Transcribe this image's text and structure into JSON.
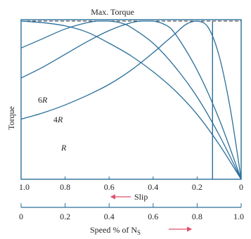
{
  "chart_data": {
    "type": "line",
    "ylabel": "Torque",
    "top_label": "Max. Torque",
    "max_torque": 1.0,
    "slip_axis": {
      "direction_label": "Slip",
      "ticks": [
        "1.0",
        "0.8",
        "0.6",
        "0.4",
        "0.2",
        "0"
      ],
      "range": [
        1.0,
        0
      ]
    },
    "speed_axis": {
      "label_main": "Speed % of N",
      "label_sub": "S",
      "ticks": [
        "0",
        "0.2",
        "0.4",
        "0.6",
        "0.8",
        "1.0"
      ],
      "range": [
        0,
        1.0
      ]
    },
    "vertical_marker_slip": 0.13,
    "series": [
      {
        "name": "R",
        "slip_at_max_torque": 0.2,
        "x": [
          1.0,
          0.9,
          0.8,
          0.7,
          0.6,
          0.5,
          0.4,
          0.35,
          0.3,
          0.25,
          0.2,
          0.15,
          0.1,
          0.05,
          0
        ],
        "y": [
          0.38,
          0.42,
          0.47,
          0.53,
          0.6,
          0.69,
          0.8,
          0.86,
          0.92,
          0.98,
          1.0,
          0.96,
          0.78,
          0.45,
          0
        ]
      },
      {
        "name": "4R",
        "slip_at_max_torque": 0.4,
        "x": [
          1.0,
          0.9,
          0.8,
          0.7,
          0.6,
          0.5,
          0.45,
          0.4,
          0.35,
          0.3,
          0.2,
          0.1,
          0
        ],
        "y": [
          0.64,
          0.71,
          0.79,
          0.87,
          0.94,
          0.99,
          1.0,
          1.0,
          0.98,
          0.92,
          0.69,
          0.38,
          0
        ]
      },
      {
        "name": "6R",
        "slip_at_max_torque": 0.6,
        "x": [
          1.0,
          0.9,
          0.8,
          0.7,
          0.65,
          0.6,
          0.55,
          0.5,
          0.4,
          0.3,
          0.2,
          0.1,
          0
        ],
        "y": [
          0.83,
          0.89,
          0.95,
          0.99,
          1.0,
          1.0,
          0.99,
          0.96,
          0.86,
          0.71,
          0.52,
          0.28,
          0
        ]
      },
      {
        "name": "",
        "x": [
          1.0,
          0.9,
          0.8,
          0.7,
          0.6,
          0.5,
          0.4,
          0.3,
          0.2,
          0.1,
          0
        ],
        "y": [
          1.0,
          0.99,
          0.97,
          0.93,
          0.86,
          0.78,
          0.68,
          0.56,
          0.41,
          0.22,
          0
        ]
      }
    ],
    "series_label_text": {
      "6R": {
        "base": "6",
        "italic": "R"
      },
      "4R": {
        "base": "4",
        "italic": "R"
      },
      "R": {
        "base": "",
        "italic": "R"
      }
    }
  }
}
